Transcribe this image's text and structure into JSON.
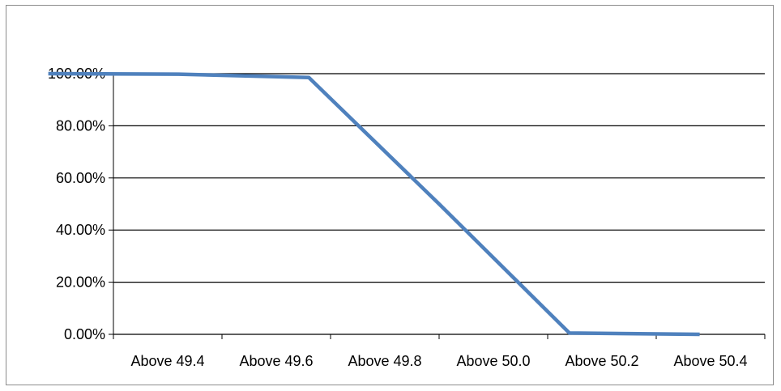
{
  "chart_data": {
    "type": "line",
    "categories": [
      "Above 49.4",
      "Above 49.6",
      "Above 49.8",
      "Above 50.0",
      "Above 50.2",
      "Above 50.4"
    ],
    "x": [
      49.3,
      49.5,
      49.7,
      49.9,
      50.1,
      50.3
    ],
    "series": [
      {
        "values": [
          100.0,
          99.8,
          98.5,
          50.0,
          0.5,
          0.0
        ],
        "color": "#4f81bd"
      }
    ],
    "yticks": [
      "0.00%",
      "20.00%",
      "40.00%",
      "60.00%",
      "80.00%",
      "100.00%"
    ],
    "ylim": [
      0,
      100
    ],
    "xlim": [
      49.4,
      50.4
    ],
    "grid": true,
    "legend": "none",
    "title": "",
    "xlabel": "",
    "ylabel": ""
  }
}
